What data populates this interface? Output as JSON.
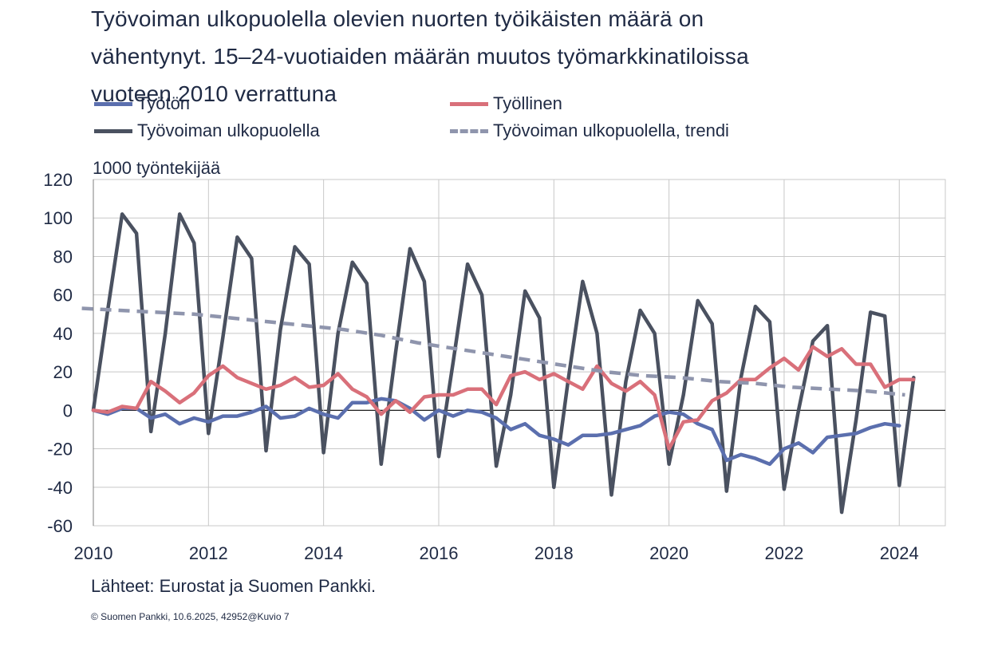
{
  "chart_data": {
    "type": "line",
    "title_lines": [
      "Työvoiman ulkopuolella olevien nuorten työikäisten määrä on",
      "vähentynyt. 15–24-vuotiaiden määrän muutos työmarkkinatiloissa",
      "vuoteen 2010 verrattuna"
    ],
    "ylabel": "1000 työntekijää",
    "xlabel": "",
    "ylim": [
      -60,
      120
    ],
    "yticks": [
      -60,
      -40,
      -20,
      0,
      20,
      40,
      60,
      80,
      100,
      120
    ],
    "xlim": [
      2010,
      2024.8
    ],
    "xticks": [
      2010,
      2012,
      2014,
      2016,
      2018,
      2020,
      2022,
      2024
    ],
    "xtick_labels": [
      "2010",
      "2012",
      "2014",
      "2016",
      "2018",
      "2020",
      "2022",
      "2024"
    ],
    "grid": true,
    "legend_placement": "top",
    "x_start": 2010,
    "x_step": 0.25,
    "series": [
      {
        "name": "Työtön",
        "color": "#5b6fae",
        "dash": "solid",
        "values": [
          0,
          -2,
          1,
          1,
          -4,
          -2,
          -7,
          -4,
          -6,
          -3,
          -3,
          -1,
          2,
          -4,
          -3,
          1,
          -2,
          -4,
          4,
          4,
          6,
          5,
          1,
          -5,
          0,
          -3,
          0,
          -1,
          -4,
          -10,
          -7,
          -13,
          -15,
          -18,
          -13,
          -13,
          -12,
          -10,
          -8,
          -3,
          -1,
          -2,
          -7,
          -10,
          -26,
          -23,
          -25,
          -28,
          -20,
          -17,
          -22,
          -14,
          -13,
          -12,
          -9,
          -7,
          -8
        ]
      },
      {
        "name": "Työllinen",
        "color": "#d9707a",
        "dash": "solid",
        "values": [
          0,
          -1,
          2,
          1,
          15,
          10,
          4,
          9,
          18,
          23,
          17,
          14,
          11,
          13,
          17,
          12,
          13,
          19,
          11,
          7,
          -2,
          5,
          -1,
          7,
          8,
          8,
          11,
          11,
          3,
          18,
          20,
          16,
          19,
          15,
          11,
          23,
          14,
          10,
          15,
          8,
          -20,
          -6,
          -5,
          5,
          9,
          16,
          16,
          22,
          27,
          21,
          33,
          28,
          32,
          24,
          24,
          12,
          16,
          16
        ]
      },
      {
        "name": "Työvoiman ulkopuolella",
        "color": "#4a5160",
        "dash": "solid",
        "values": [
          0,
          52,
          102,
          92,
          -11,
          40,
          102,
          87,
          -12,
          38,
          90,
          79,
          -21,
          42,
          85,
          76,
          -22,
          40,
          77,
          66,
          -28,
          30,
          84,
          67,
          -24,
          25,
          76,
          60,
          -29,
          8,
          62,
          48,
          -40,
          16,
          67,
          40,
          -44,
          15,
          52,
          40,
          -28,
          8,
          57,
          45,
          -42,
          17,
          54,
          46,
          -41,
          0,
          36,
          44,
          -53,
          -5,
          51,
          49,
          -39,
          17
        ]
      },
      {
        "name": "Työvoiman ulkopuolella, trendi",
        "color": "#8f95ad",
        "dash": "dashed",
        "values": [
          53,
          52,
          51,
          50,
          48,
          46,
          44,
          42,
          39,
          35,
          32,
          29,
          26,
          23,
          20,
          18,
          17,
          15,
          14,
          12,
          11,
          10,
          8
        ]
      }
    ],
    "trend_x_start": 2009.8,
    "trend_x_step": 0.65
  },
  "legend": {
    "items": [
      "Työtön",
      "Työllinen",
      "Työvoiman ulkopuolella",
      "Työvoiman ulkopuolella, trendi"
    ]
  },
  "footer": {
    "source": "Lähteet: Eurostat ja Suomen Pankki.",
    "copyright": "© Suomen Pankki, 10.6.2025,  42952@Kuvio  7"
  }
}
